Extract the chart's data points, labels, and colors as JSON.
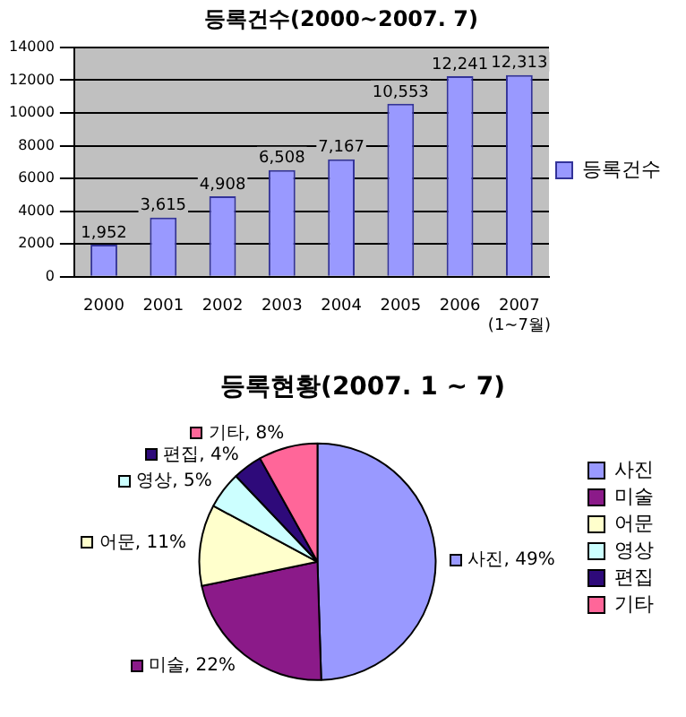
{
  "chart_data": [
    {
      "type": "bar",
      "title": "등록건수(2000~2007. 7)",
      "categories": [
        "2000",
        "2001",
        "2002",
        "2003",
        "2004",
        "2005",
        "2006",
        "2007(1~7월)"
      ],
      "series": [
        {
          "name": "등록건수",
          "color": "#9999ff",
          "values": [
            1952,
            3615,
            4908,
            6508,
            7167,
            10553,
            12241,
            12313
          ],
          "value_labels": [
            "1,952",
            "3,615",
            "4,908",
            "6,508",
            "7,167",
            "10,553",
            "12,241",
            "12,313"
          ]
        }
      ],
      "ylim": [
        0,
        14000
      ],
      "yticks": [
        0,
        2000,
        4000,
        6000,
        8000,
        10000,
        12000,
        14000
      ],
      "grid": "y",
      "legend": "right"
    },
    {
      "type": "pie",
      "title": "등록현황(2007. 1 ~ 7)",
      "categories": [
        "사진",
        "미술",
        "어문",
        "영상",
        "편집",
        "기타"
      ],
      "values": [
        49,
        22,
        11,
        5,
        4,
        8
      ],
      "colors": [
        "#9999ff",
        "#8b1a89",
        "#ffffcc",
        "#ccffff",
        "#2e0a7a",
        "#ff6699"
      ],
      "value_labels": [
        "사진, 49%",
        "미술, 22%",
        "어문, 11%",
        "영상, 5%",
        "편집, 4%",
        "기타, 8%"
      ],
      "legend": "right"
    }
  ]
}
